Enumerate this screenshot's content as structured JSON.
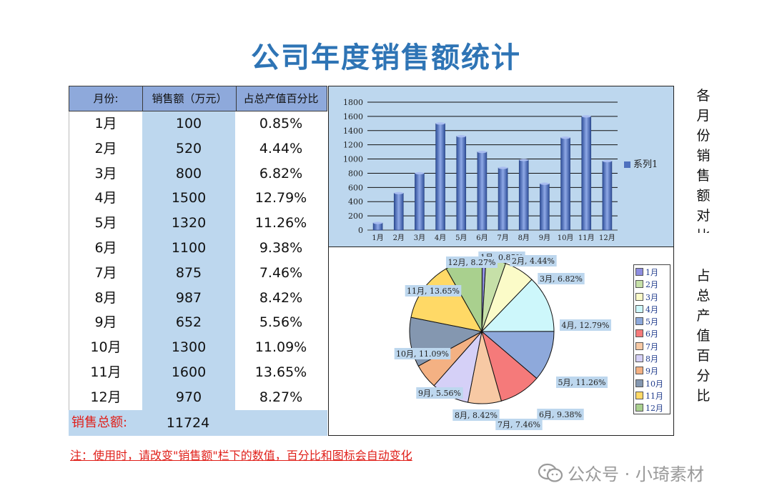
{
  "title": "公司年度销售额统计",
  "table": {
    "headers": [
      "月份:",
      "销售额（万元）",
      "占总产值百分比"
    ],
    "rows": [
      {
        "month": "1月",
        "sales": "100",
        "pct": "0.85%"
      },
      {
        "month": "2月",
        "sales": "520",
        "pct": "4.44%"
      },
      {
        "month": "3月",
        "sales": "800",
        "pct": "6.82%"
      },
      {
        "month": "4月",
        "sales": "1500",
        "pct": "12.79%"
      },
      {
        "month": "5月",
        "sales": "1320",
        "pct": "11.26%"
      },
      {
        "month": "6月",
        "sales": "1100",
        "pct": "9.38%"
      },
      {
        "month": "7月",
        "sales": "875",
        "pct": "7.46%"
      },
      {
        "month": "8月",
        "sales": "987",
        "pct": "8.42%"
      },
      {
        "month": "9月",
        "sales": "652",
        "pct": "5.56%"
      },
      {
        "month": "10月",
        "sales": "1300",
        "pct": "11.09%"
      },
      {
        "month": "11月",
        "sales": "1600",
        "pct": "13.65%"
      },
      {
        "month": "12月",
        "sales": "970",
        "pct": "8.27%"
      }
    ],
    "total_label": "销售总额:",
    "total_value": "11724"
  },
  "side_labels": {
    "bar": [
      "各",
      "月",
      "份",
      "销",
      "售",
      "额",
      "对",
      "比"
    ],
    "pie": [
      "占",
      "总",
      "产",
      "值",
      "百",
      "分",
      "比"
    ]
  },
  "note": "注：使用时，请改变\"销售额\"栏下的数值，百分比和图标会自动变化",
  "watermark": "公众号 · 小琦素材",
  "chart_data": [
    {
      "type": "bar",
      "categories": [
        "1月",
        "2月",
        "3月",
        "4月",
        "5月",
        "6月",
        "7月",
        "8月",
        "9月",
        "10月",
        "11月",
        "12月"
      ],
      "series": [
        {
          "name": "系列1",
          "values": [
            100,
            520,
            800,
            1500,
            1320,
            1100,
            875,
            987,
            652,
            1300,
            1600,
            970
          ]
        }
      ],
      "yticks": [
        0,
        200,
        400,
        600,
        800,
        1000,
        1200,
        1400,
        1600,
        1800
      ],
      "ylim": [
        0,
        1800
      ],
      "grid": true,
      "legend_position": "right",
      "bar_color": "#4f71be",
      "background": "#bdd7ee"
    },
    {
      "type": "pie",
      "labels": [
        "1月",
        "2月",
        "3月",
        "4月",
        "5月",
        "6月",
        "7月",
        "8月",
        "9月",
        "10月",
        "11月",
        "12月"
      ],
      "values": [
        100,
        520,
        800,
        1500,
        1320,
        1100,
        875,
        987,
        652,
        1300,
        1600,
        970
      ],
      "data_labels": [
        "1月, 0.85%",
        "2月, 4.44%",
        "3月, 6.82%",
        "4月, 12.79%",
        "5月, 11.26%",
        "6月, 9.38%",
        "7月, 7.46%",
        "8月, 8.42%",
        "9月, 5.56%",
        "10月, 11.09%",
        "11月, 13.65%",
        "12月, 8.27%"
      ],
      "colors": [
        "#8e8ee0",
        "#c6e0a8",
        "#fbfbc8",
        "#cdf7fb",
        "#8ea9db",
        "#f57a7a",
        "#f7c9a4",
        "#d5d0f7",
        "#f4b183",
        "#8497b0",
        "#ffd966",
        "#a9d08e"
      ],
      "legend_position": "right"
    }
  ]
}
